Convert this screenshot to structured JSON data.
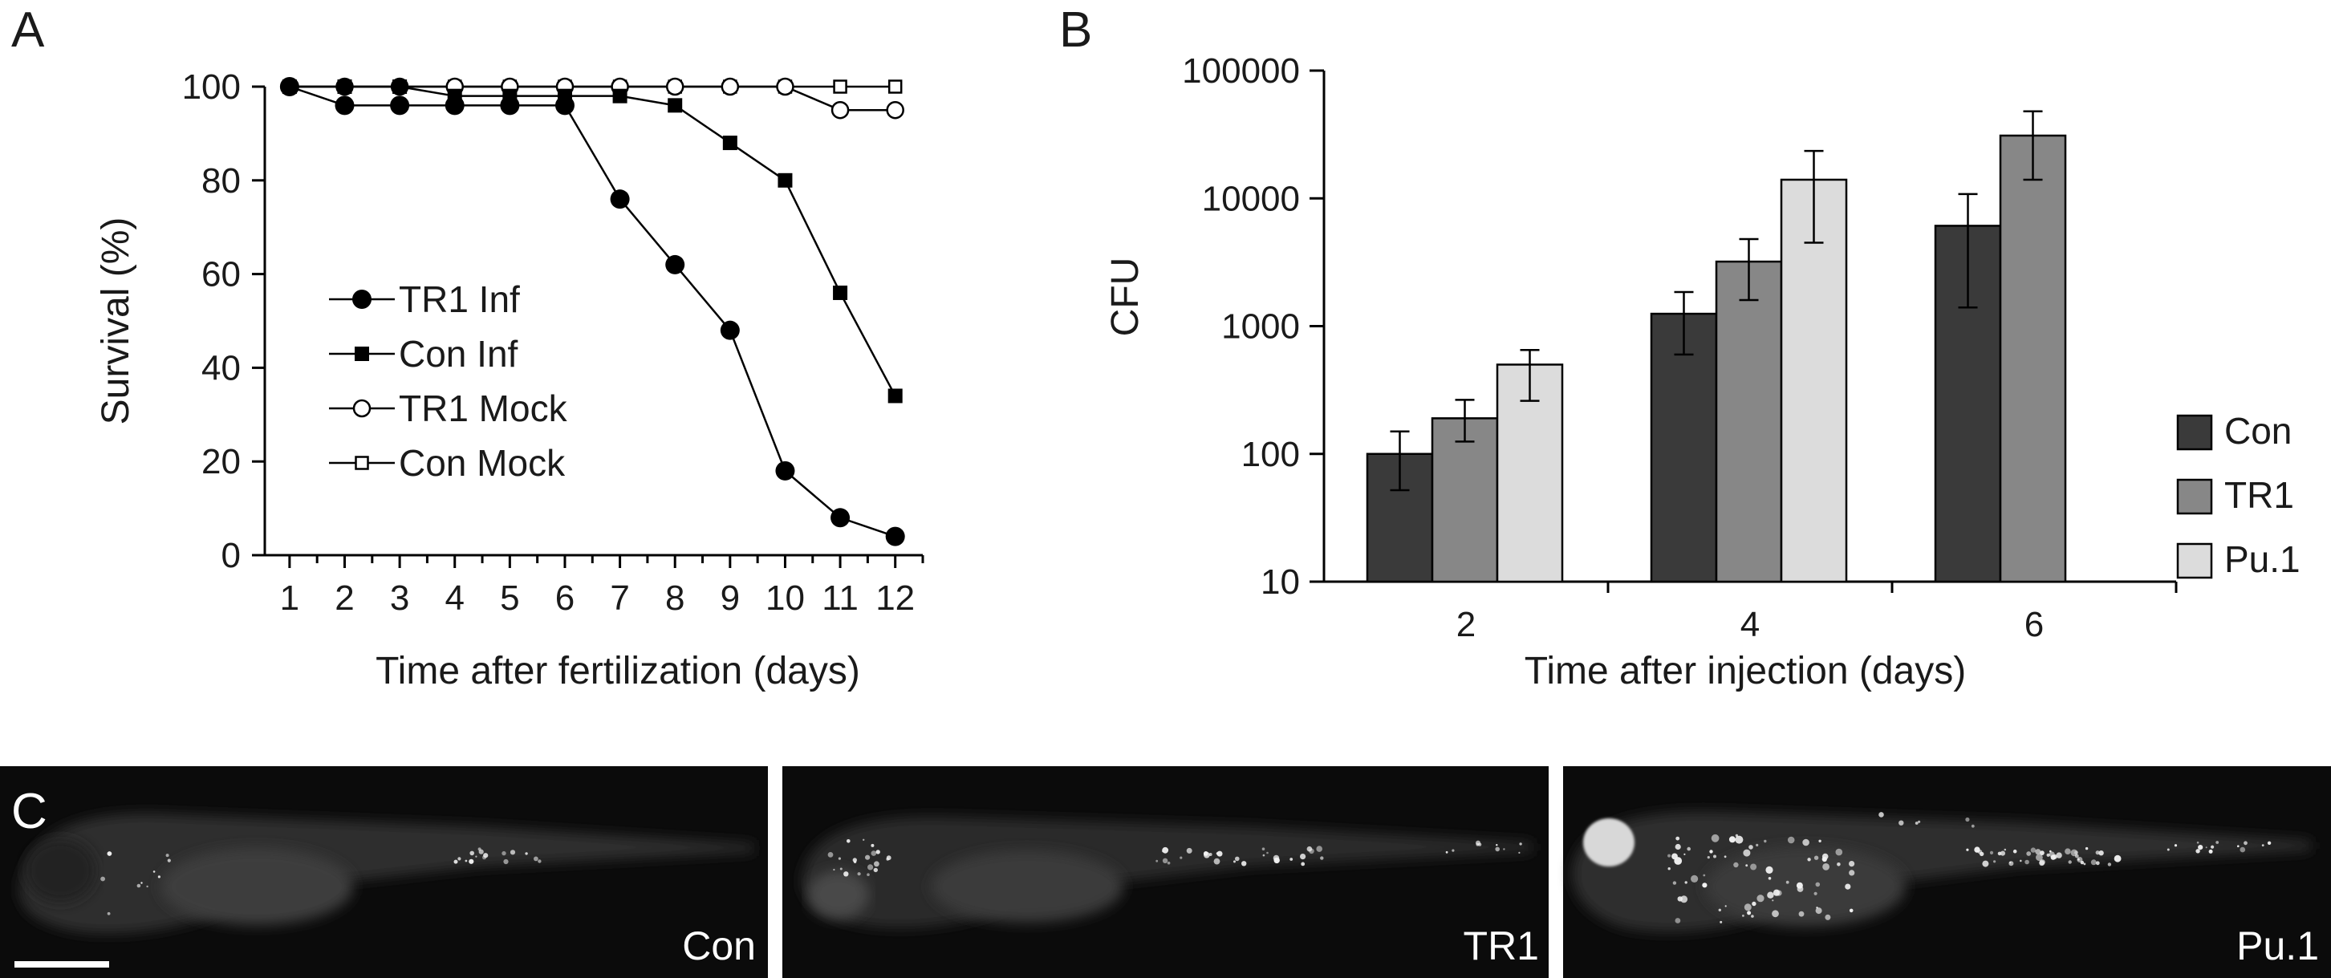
{
  "panels": {
    "a_label": "A",
    "b_label": "B",
    "c_label": "C"
  },
  "chart_data": [
    {
      "id": "A",
      "type": "line",
      "title": "",
      "xlabel": "Time after fertilization (days)",
      "ylabel": "Survival (%)",
      "x": [
        1,
        2,
        3,
        4,
        5,
        6,
        7,
        8,
        9,
        10,
        11,
        12
      ],
      "xlim": [
        0.55,
        12.5
      ],
      "ylim": [
        0,
        100
      ],
      "yticks": [
        0,
        20,
        40,
        60,
        80,
        100
      ],
      "grid": false,
      "legend_position": "center-left",
      "series": [
        {
          "name": "TR1 Inf",
          "marker": "filled-circle",
          "values": [
            100,
            96,
            96,
            96,
            96,
            96,
            76,
            62,
            48,
            18,
            8,
            4
          ]
        },
        {
          "name": "Con Inf",
          "marker": "filled-square",
          "values": [
            100,
            100,
            100,
            98,
            98,
            98,
            98,
            96,
            88,
            80,
            56,
            34
          ]
        },
        {
          "name": "TR1 Mock",
          "marker": "open-circle",
          "values": [
            100,
            100,
            100,
            100,
            100,
            100,
            100,
            100,
            100,
            100,
            95,
            95
          ]
        },
        {
          "name": "Con Mock",
          "marker": "open-square",
          "values": [
            100,
            100,
            100,
            100,
            100,
            100,
            100,
            100,
            100,
            100,
            100,
            100
          ]
        }
      ]
    },
    {
      "id": "B",
      "type": "bar",
      "title": "",
      "xlabel": "Time after injection (days)",
      "ylabel": "CFU",
      "yscale": "log",
      "ylim": [
        10,
        100000
      ],
      "yticks": [
        "10",
        "100",
        "1000",
        "10000",
        "100000"
      ],
      "categories": [
        "2",
        "4",
        "6"
      ],
      "grid": false,
      "legend_position": "right",
      "series": [
        {
          "name": "Con",
          "color": "#3a3a3a",
          "values": [
            100,
            1250,
            6100
          ],
          "err_low": [
            52,
            600,
            1400
          ],
          "err_high": [
            150,
            1850,
            10800
          ]
        },
        {
          "name": "TR1",
          "color": "#878787",
          "values": [
            190,
            3200,
            31000
          ],
          "err_low": [
            125,
            1600,
            14000
          ],
          "err_high": [
            265,
            4800,
            48000
          ]
        },
        {
          "name": "Pu.1",
          "color": "#dcdcdc",
          "values": [
            500,
            14000,
            null
          ],
          "err_low": [
            260,
            4500,
            null
          ],
          "err_high": [
            650,
            23500,
            null
          ]
        }
      ]
    }
  ],
  "panel_c": {
    "images": [
      {
        "label": "Con"
      },
      {
        "label": "TR1"
      },
      {
        "label": "Pu.1"
      }
    ]
  }
}
